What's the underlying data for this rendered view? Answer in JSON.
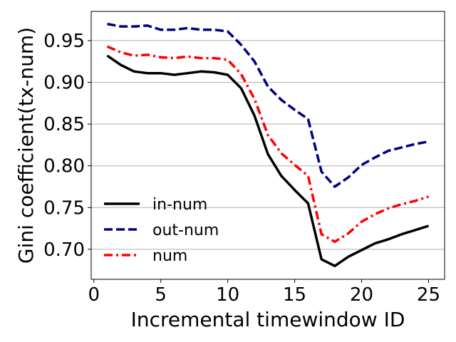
{
  "chart_data": {
    "type": "line",
    "xlabel": "Incremental timewindow ID",
    "ylabel": "Gini coefficient(tx-num)",
    "xlim": [
      -0.2,
      26.2
    ],
    "ylim": [
      0.664,
      0.985
    ],
    "xticks": [
      0,
      5,
      10,
      15,
      20,
      25
    ],
    "yticks": [
      0.7,
      0.75,
      0.8,
      0.85,
      0.9,
      0.95
    ],
    "ytick_labels": [
      "0.70",
      "0.75",
      "0.80",
      "0.85",
      "0.90",
      "0.95"
    ],
    "grid": "horizontal",
    "legend_position": "lower-left",
    "x": [
      1,
      2,
      3,
      4,
      5,
      6,
      7,
      8,
      9,
      10,
      11,
      12,
      13,
      14,
      15,
      16,
      17,
      18,
      19,
      20,
      21,
      22,
      23,
      24,
      25
    ],
    "series": [
      {
        "name": "in-num",
        "color": "#000000",
        "dash": "solid",
        "values": [
          0.932,
          0.921,
          0.913,
          0.911,
          0.911,
          0.909,
          0.911,
          0.913,
          0.912,
          0.909,
          0.893,
          0.86,
          0.814,
          0.788,
          0.771,
          0.755,
          0.688,
          0.68,
          0.691,
          0.699,
          0.707,
          0.712,
          0.718,
          0.723,
          0.728
        ]
      },
      {
        "name": "out-num",
        "color": "#000080",
        "dash": "dashed",
        "values": [
          0.97,
          0.967,
          0.967,
          0.968,
          0.963,
          0.963,
          0.965,
          0.963,
          0.963,
          0.961,
          0.945,
          0.925,
          0.895,
          0.879,
          0.867,
          0.856,
          0.793,
          0.775,
          0.786,
          0.801,
          0.81,
          0.818,
          0.822,
          0.826,
          0.829
        ]
      },
      {
        "name": "num",
        "color": "#ff0000",
        "dash": "dashdot",
        "values": [
          0.943,
          0.936,
          0.932,
          0.933,
          0.93,
          0.929,
          0.931,
          0.929,
          0.929,
          0.927,
          0.91,
          0.88,
          0.837,
          0.815,
          0.801,
          0.788,
          0.718,
          0.709,
          0.719,
          0.733,
          0.742,
          0.749,
          0.754,
          0.758,
          0.763
        ]
      }
    ]
  }
}
